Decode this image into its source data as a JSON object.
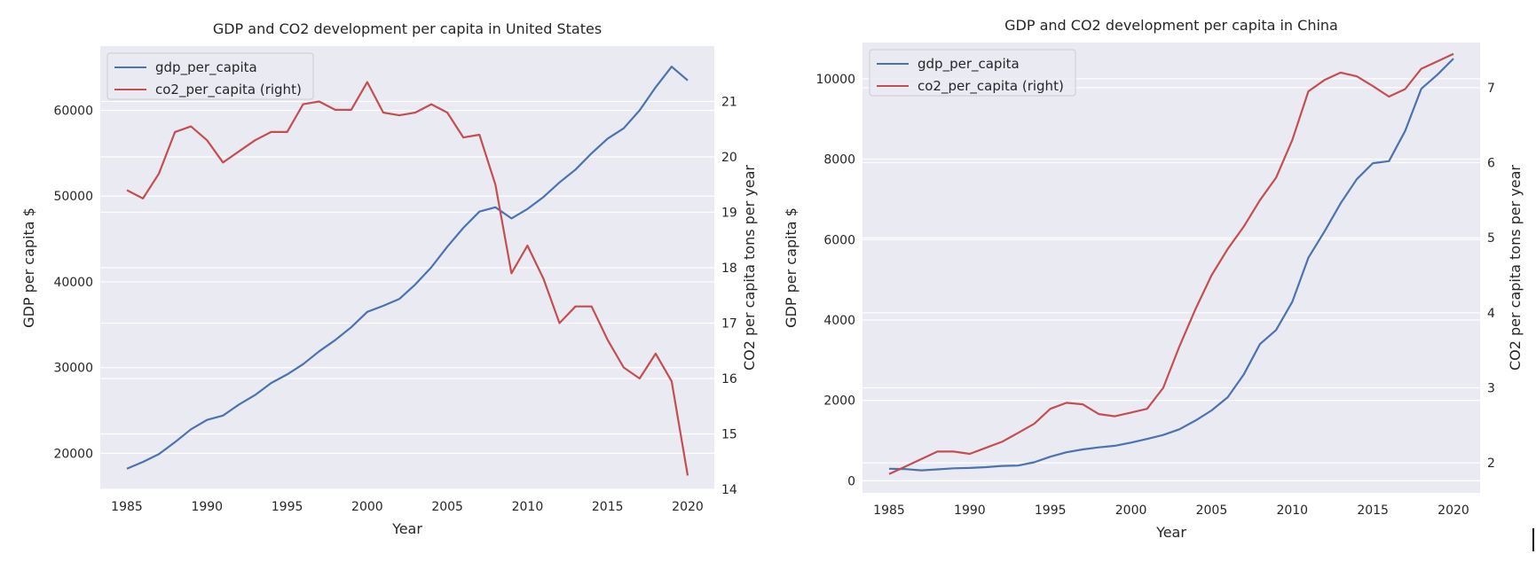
{
  "chart_data": [
    {
      "type": "line",
      "title": "GDP and CO2 development per capita in United States",
      "xlabel": "Year",
      "ylabel": "GDP per capita $",
      "y2label": "CO2 per capita tons per year",
      "xlim": [
        1985,
        2020
      ],
      "ylim": [
        15800,
        67500
      ],
      "y2lim": [
        14.0,
        22.0
      ],
      "xticks": [
        "1985",
        "1990",
        "1995",
        "2000",
        "2005",
        "2010",
        "2015",
        "2020"
      ],
      "yticks": [
        "20000",
        "30000",
        "40000",
        "50000",
        "60000"
      ],
      "y2ticks": [
        "14",
        "15",
        "16",
        "17",
        "18",
        "19",
        "20",
        "21"
      ],
      "legend_position": "upper-left",
      "grid": true,
      "x": [
        1985,
        1986,
        1987,
        1988,
        1989,
        1990,
        1991,
        1992,
        1993,
        1994,
        1995,
        1996,
        1997,
        1998,
        1999,
        2000,
        2001,
        2002,
        2003,
        2004,
        2005,
        2006,
        2007,
        2008,
        2009,
        2010,
        2011,
        2012,
        2013,
        2014,
        2015,
        2016,
        2017,
        2018,
        2019,
        2020
      ],
      "series": [
        {
          "name": "gdp_per_capita",
          "axis": "left",
          "color": "#4c72b0",
          "values": [
            18200,
            19000,
            19900,
            21300,
            22800,
            23900,
            24400,
            25700,
            26800,
            28200,
            29200,
            30400,
            31900,
            33200,
            34700,
            36500,
            37200,
            38000,
            39700,
            41700,
            44100,
            46300,
            48200,
            48700,
            47400,
            48500,
            49900,
            51600,
            53100,
            55000,
            56700,
            57900,
            60000,
            62700,
            65100,
            63500
          ]
        },
        {
          "name": "co2_per_capita (right)",
          "axis": "right",
          "color": "#c44e52",
          "values": [
            19.4,
            19.25,
            19.7,
            20.45,
            20.55,
            20.3,
            19.9,
            20.1,
            20.3,
            20.45,
            20.45,
            20.95,
            21.0,
            20.85,
            20.85,
            21.35,
            20.8,
            20.75,
            20.8,
            20.95,
            20.8,
            20.35,
            20.4,
            19.5,
            17.9,
            18.4,
            17.8,
            17.0,
            17.3,
            17.3,
            16.7,
            16.2,
            16.0,
            16.45,
            15.95,
            14.25
          ]
        }
      ]
    },
    {
      "type": "line",
      "title": "GDP and CO2 development per capita in China",
      "xlabel": "Year",
      "ylabel": "GDP per capita $",
      "y2label": "CO2 per capita tons per year",
      "xlim": [
        1985,
        2020
      ],
      "ylim": [
        -300,
        10900
      ],
      "y2lim": [
        1.6,
        7.6
      ],
      "xticks": [
        "1985",
        "1990",
        "1995",
        "2000",
        "2005",
        "2010",
        "2015",
        "2020"
      ],
      "yticks": [
        "0",
        "2000",
        "4000",
        "6000",
        "8000",
        "10000"
      ],
      "y2ticks": [
        "2",
        "3",
        "4",
        "5",
        "6",
        "7"
      ],
      "legend_position": "upper-left",
      "grid": true,
      "x": [
        1985,
        1986,
        1987,
        1988,
        1989,
        1990,
        1991,
        1992,
        1993,
        1994,
        1995,
        1996,
        1997,
        1998,
        1999,
        2000,
        2001,
        2002,
        2003,
        2004,
        2005,
        2006,
        2007,
        2008,
        2009,
        2010,
        2011,
        2012,
        2013,
        2014,
        2015,
        2016,
        2017,
        2018,
        2019,
        2020
      ],
      "series": [
        {
          "name": "gdp_per_capita",
          "axis": "left",
          "color": "#4c72b0",
          "values": [
            300,
            290,
            260,
            285,
            310,
            320,
            340,
            370,
            380,
            460,
            600,
            710,
            780,
            830,
            870,
            950,
            1040,
            1140,
            1280,
            1500,
            1750,
            2080,
            2650,
            3400,
            3750,
            4450,
            5550,
            6200,
            6900,
            7500,
            7900,
            7950,
            8700,
            9750,
            10100,
            10500
          ]
        },
        {
          "name": "co2_per_capita (right)",
          "axis": "right",
          "color": "#c44e52",
          "values": [
            1.85,
            1.95,
            2.05,
            2.15,
            2.15,
            2.12,
            2.2,
            2.28,
            2.4,
            2.52,
            2.72,
            2.8,
            2.78,
            2.65,
            2.62,
            2.67,
            2.72,
            3.0,
            3.55,
            4.05,
            4.5,
            4.85,
            5.15,
            5.5,
            5.8,
            6.3,
            6.95,
            7.1,
            7.2,
            7.15,
            7.02,
            6.88,
            6.98,
            7.25,
            7.35,
            7.45
          ]
        }
      ]
    }
  ]
}
